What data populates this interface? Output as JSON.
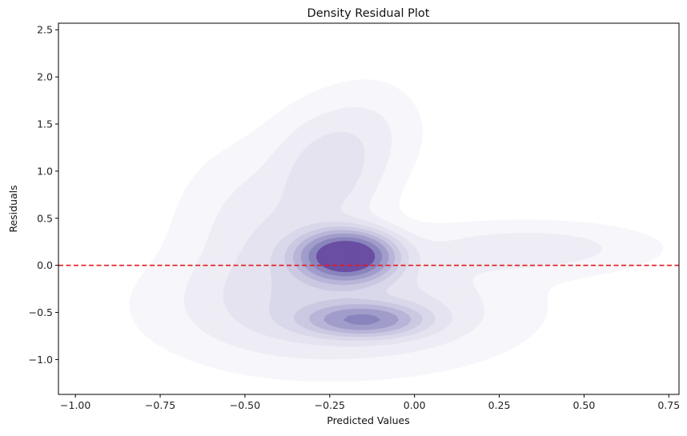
{
  "chart_data": {
    "type": "heatmap",
    "kind": "2d-kde-filled-contours",
    "title": "Density Residual Plot",
    "xlabel": "Predicted Values",
    "ylabel": "Residuals",
    "xlim": [
      -1.05,
      0.78
    ],
    "ylim": [
      -1.37,
      2.57
    ],
    "x_ticks": [
      -1.0,
      -0.75,
      -0.5,
      -0.25,
      0.0,
      0.25,
      0.5,
      0.75
    ],
    "x_tick_labels": [
      "−1.00",
      "−0.75",
      "−0.50",
      "−0.25",
      "0.00",
      "0.25",
      "0.50",
      "0.75"
    ],
    "y_ticks": [
      -1.0,
      -0.5,
      0.0,
      0.5,
      1.0,
      1.5,
      2.0,
      2.5
    ],
    "y_tick_labels": [
      "−1.0",
      "−0.5",
      "0.0",
      "0.5",
      "1.0",
      "1.5",
      "2.0",
      "2.5"
    ],
    "grid": false,
    "colormap": "Purples",
    "density_components": [
      {
        "x": -0.2,
        "y": 0.1,
        "sx": 0.085,
        "sy": 0.16,
        "w": 1.0
      },
      {
        "x": -0.15,
        "y": -0.58,
        "sx": 0.11,
        "sy": 0.11,
        "w": 0.45
      },
      {
        "x": -0.22,
        "y": -0.45,
        "sx": 0.3,
        "sy": 0.38,
        "w": 0.16
      },
      {
        "x": -0.25,
        "y": 1.05,
        "sx": 0.1,
        "sy": 0.38,
        "w": 0.12
      },
      {
        "x": -0.42,
        "y": 0.35,
        "sx": 0.16,
        "sy": 0.55,
        "w": 0.1
      },
      {
        "x": 0.35,
        "y": 0.18,
        "sx": 0.22,
        "sy": 0.17,
        "w": 0.09
      },
      {
        "x": -0.12,
        "y": 1.45,
        "sx": 0.1,
        "sy": 0.35,
        "w": 0.05
      }
    ],
    "contour_levels": [
      0.02,
      0.06,
      0.11,
      0.17,
      0.24,
      0.32,
      0.42,
      0.55,
      0.7
    ],
    "contour_colors": [
      "#f7f6fa",
      "#eeedf5",
      "#e5e3f0",
      "#d9d7ea",
      "#cbc9e2",
      "#b8b5d8",
      "#a19dcb",
      "#8a84bd",
      "#6a4ea3"
    ],
    "reference_line": {
      "y": 0.0,
      "style": "dashed",
      "color": "#e41a1c"
    }
  }
}
